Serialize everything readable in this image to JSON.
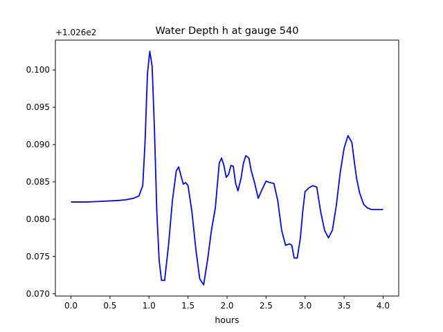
{
  "chart_data": {
    "type": "line",
    "title": "Water Depth h at gauge 540",
    "xlabel": "hours",
    "ylabel": "",
    "offset_text": "+1.026e2",
    "xlim": [
      -0.2,
      4.2
    ],
    "ylim": [
      0.0697,
      0.104
    ],
    "xticks": [
      0.0,
      0.5,
      1.0,
      1.5,
      2.0,
      2.5,
      3.0,
      3.5,
      4.0
    ],
    "xtick_labels": [
      "0.0",
      "0.5",
      "1.0",
      "1.5",
      "2.0",
      "2.5",
      "3.0",
      "3.5",
      "4.0"
    ],
    "yticks": [
      0.07,
      0.075,
      0.08,
      0.085,
      0.09,
      0.095,
      0.1
    ],
    "ytick_labels": [
      "0.070",
      "0.075",
      "0.080",
      "0.085",
      "0.090",
      "0.095",
      "0.100"
    ],
    "grid": false,
    "series": [
      {
        "color": "#0000ff",
        "x": [
          0.0,
          0.2,
          0.4,
          0.6,
          0.7,
          0.8,
          0.87,
          0.92,
          0.95,
          0.98,
          1.01,
          1.04,
          1.07,
          1.1,
          1.13,
          1.16,
          1.2,
          1.25,
          1.3,
          1.35,
          1.38,
          1.41,
          1.44,
          1.47,
          1.5,
          1.55,
          1.6,
          1.65,
          1.7,
          1.75,
          1.8,
          1.85,
          1.9,
          1.93,
          1.96,
          1.99,
          2.02,
          2.05,
          2.08,
          2.11,
          2.14,
          2.18,
          2.21,
          2.24,
          2.28,
          2.31,
          2.35,
          2.4,
          2.45,
          2.5,
          2.55,
          2.6,
          2.65,
          2.7,
          2.75,
          2.8,
          2.83,
          2.86,
          2.9,
          2.94,
          2.97,
          3.0,
          3.05,
          3.1,
          3.15,
          3.2,
          3.25,
          3.3,
          3.35,
          3.4,
          3.45,
          3.5,
          3.55,
          3.6,
          3.63,
          3.66,
          3.7,
          3.75,
          3.8,
          3.85,
          3.9,
          3.95,
          4.0
        ],
        "y": [
          0.0823,
          0.0823,
          0.0824,
          0.0825,
          0.0826,
          0.0828,
          0.0831,
          0.0845,
          0.0905,
          0.0995,
          0.1025,
          0.1005,
          0.092,
          0.081,
          0.0745,
          0.0718,
          0.0718,
          0.0765,
          0.0825,
          0.0865,
          0.087,
          0.0858,
          0.0847,
          0.0849,
          0.0845,
          0.081,
          0.076,
          0.072,
          0.0712,
          0.0745,
          0.0785,
          0.0815,
          0.0875,
          0.0882,
          0.0872,
          0.0856,
          0.086,
          0.0872,
          0.0871,
          0.0848,
          0.0838,
          0.0855,
          0.0875,
          0.0885,
          0.0882,
          0.0865,
          0.085,
          0.0828,
          0.084,
          0.0851,
          0.0849,
          0.0848,
          0.0825,
          0.0785,
          0.0765,
          0.0767,
          0.0765,
          0.0748,
          0.0748,
          0.0775,
          0.081,
          0.0837,
          0.0842,
          0.0845,
          0.0843,
          0.081,
          0.0785,
          0.0775,
          0.0785,
          0.0818,
          0.0862,
          0.0895,
          0.0912,
          0.0903,
          0.0878,
          0.0855,
          0.0835,
          0.082,
          0.0815,
          0.0813,
          0.0813,
          0.0813,
          0.0813
        ]
      }
    ]
  }
}
